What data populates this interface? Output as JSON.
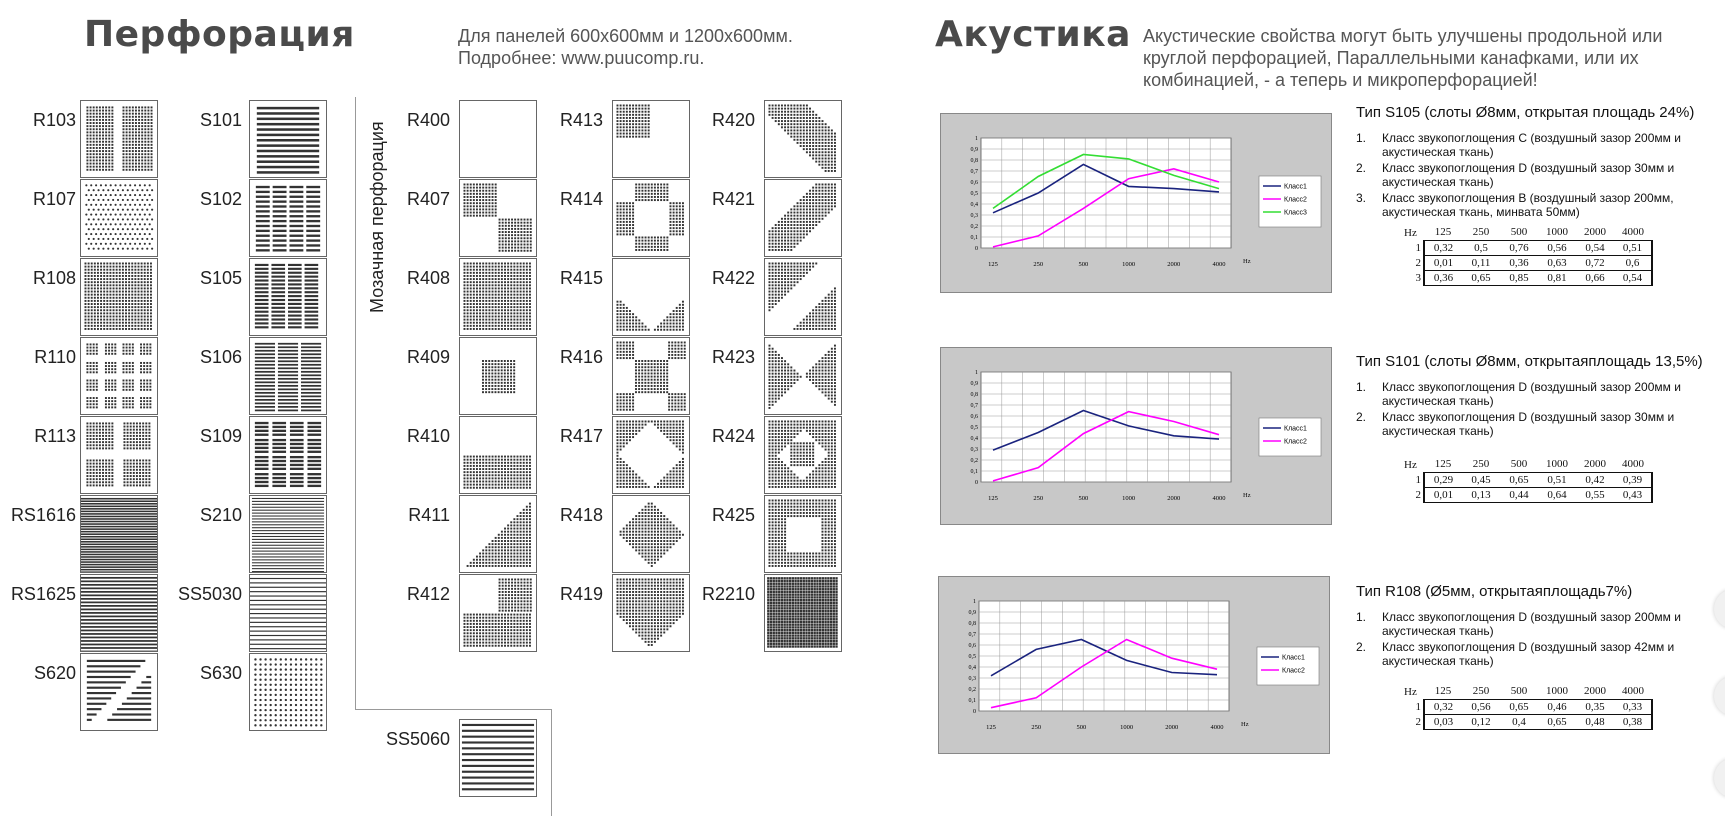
{
  "left": {
    "title": "Перфорация",
    "subtitle": "Для панелей 600х600мм и 1200х600мм.\nПодробнее: www.puucomp.ru.",
    "mosaic_label": "Мозачная перфорация",
    "col1": [
      "R103",
      "R107",
      "R108",
      "R110",
      "R113",
      "RS1616",
      "RS1625",
      "S620"
    ],
    "col2": [
      "S101",
      "S102",
      "S105",
      "S106",
      "S109",
      "S210",
      "SS5030",
      "S630"
    ],
    "col3": [
      "R400",
      "R407",
      "R408",
      "R409",
      "R410",
      "R411",
      "R412",
      "SS5060"
    ],
    "col4": [
      "R413",
      "R414",
      "R415",
      "R416",
      "R417",
      "R418",
      "R419"
    ],
    "col5": [
      "R420",
      "R421",
      "R422",
      "R423",
      "R424",
      "R425",
      "R2210"
    ]
  },
  "right": {
    "title": "Акустика",
    "subtitle": "Акустические свойства могут быть улучшены продольной или\nкруглой перфорацией, Параллельными канафками, или их\nкомбинацией, - а теперь и микроперфорацией!"
  },
  "chart_data": [
    {
      "type": "line",
      "title": "Тип S105 (слоты Ø8мм, открытая площадь 24%)",
      "notes": [
        {
          "num": "1.",
          "text": "Класс звукопоглощения C (воздушный зазор 200мм и акустическая ткань)"
        },
        {
          "num": "2.",
          "text": "Класс звукопоглощения D (воздушный зазор 30мм и акустическая ткань)"
        },
        {
          "num": "3.",
          "text": "Класс звукопоглощения B (воздушный зазор 200мм, акустическая ткань, минвата 50мм)"
        }
      ],
      "x": [
        "125",
        "250",
        "500",
        "1000",
        "2000",
        "4000"
      ],
      "xlabel": "Hz",
      "ylim": [
        0,
        1
      ],
      "yticks": [
        "0",
        "0,1",
        "0,2",
        "0,3",
        "0,4",
        "0,5",
        "0,6",
        "0,7",
        "0,8",
        "0,9",
        "1"
      ],
      "series": [
        {
          "name": "Класс1",
          "color": "#1a237e",
          "values": [
            0.32,
            0.5,
            0.76,
            0.56,
            0.54,
            0.51
          ]
        },
        {
          "name": "Класс2",
          "color": "#ff00ff",
          "values": [
            0.01,
            0.11,
            0.36,
            0.63,
            0.72,
            0.6
          ]
        },
        {
          "name": "Класс3",
          "color": "#33dd33",
          "values": [
            0.36,
            0.65,
            0.85,
            0.81,
            0.66,
            0.54
          ]
        }
      ],
      "table": {
        "hz_label": "Hz",
        "rows": [
          {
            "id": "1",
            "cells": [
              "0,32",
              "0,5",
              "0,76",
              "0,56",
              "0,54",
              "0,51"
            ]
          },
          {
            "id": "2",
            "cells": [
              "0,01",
              "0,11",
              "0,36",
              "0,63",
              "0,72",
              "0,6"
            ]
          },
          {
            "id": "3",
            "cells": [
              "0,36",
              "0,65",
              "0,85",
              "0,81",
              "0,66",
              "0,54"
            ]
          }
        ]
      }
    },
    {
      "type": "line",
      "title": "Тип S101 (слоты Ø8мм, открытаяплощадь 13,5%)",
      "notes": [
        {
          "num": "1.",
          "text": "Класс звукопоглощения D (воздушный зазор 200мм и акустическая ткань)"
        },
        {
          "num": "2.",
          "text": "Класс звукопоглощения D (воздушный зазор 30мм и акустическая ткань)"
        }
      ],
      "x": [
        "125",
        "250",
        "500",
        "1000",
        "2000",
        "4000"
      ],
      "xlabel": "Hz",
      "ylim": [
        0,
        1
      ],
      "yticks": [
        "0",
        "0,1",
        "0,2",
        "0,3",
        "0,4",
        "0,5",
        "0,6",
        "0,7",
        "0,8",
        "0,9",
        "1"
      ],
      "series": [
        {
          "name": "Класс1",
          "color": "#1a237e",
          "values": [
            0.29,
            0.45,
            0.65,
            0.51,
            0.42,
            0.39
          ]
        },
        {
          "name": "Класс2",
          "color": "#ff00ff",
          "values": [
            0.01,
            0.13,
            0.44,
            0.64,
            0.55,
            0.43
          ]
        }
      ],
      "table": {
        "hz_label": "Hz",
        "rows": [
          {
            "id": "1",
            "cells": [
              "0,29",
              "0,45",
              "0,65",
              "0,51",
              "0,42",
              "0,39"
            ]
          },
          {
            "id": "2",
            "cells": [
              "0,01",
              "0,13",
              "0,44",
              "0,64",
              "0,55",
              "0,43"
            ]
          }
        ]
      }
    },
    {
      "type": "line",
      "title": "Тип R108 (Ø5мм, открытаяплощадь7%)",
      "notes": [
        {
          "num": "1.",
          "text": "Класс звукопоглощения D (воздушный зазор 200мм и акустическая ткань)"
        },
        {
          "num": "2.",
          "text": "Класс звукопоглощения D (воздушный зазор 42мм и акустическая ткань)"
        }
      ],
      "x": [
        "125",
        "250",
        "500",
        "1000",
        "2000",
        "4000"
      ],
      "xlabel": "Hz",
      "ylim": [
        0,
        1
      ],
      "yticks": [
        "0",
        "0,1",
        "0,2",
        "0,3",
        "0,4",
        "0,5",
        "0,6",
        "0,7",
        "0,8",
        "0,9",
        "1"
      ],
      "series": [
        {
          "name": "Класс1",
          "color": "#1a237e",
          "values": [
            0.32,
            0.56,
            0.65,
            0.46,
            0.35,
            0.33
          ]
        },
        {
          "name": "Класс2",
          "color": "#ff00ff",
          "values": [
            0.03,
            0.12,
            0.4,
            0.65,
            0.48,
            0.38
          ]
        }
      ],
      "table": {
        "hz_label": "Hz",
        "rows": [
          {
            "id": "1",
            "cells": [
              "0,32",
              "0,56",
              "0,65",
              "0,46",
              "0,35",
              "0,33"
            ]
          },
          {
            "id": "2",
            "cells": [
              "0,03",
              "0,12",
              "0,4",
              "0,65",
              "0,48",
              "0,38"
            ]
          }
        ]
      }
    }
  ]
}
